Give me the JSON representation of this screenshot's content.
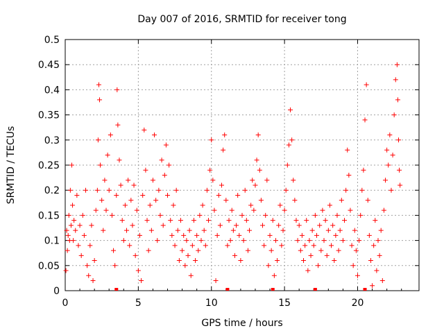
{
  "chart_data": {
    "type": "scatter",
    "title": "Day 007 of 2016, SRMTID for receiver tong",
    "xlabel": "GPS time / hours",
    "ylabel": "SRMTID / TECUs",
    "xlim": [
      0,
      24.2
    ],
    "ylim": [
      0,
      0.5
    ],
    "xticks": [
      0,
      5,
      10,
      15,
      20
    ],
    "xtick_labels": [
      "0",
      "5",
      "10",
      "15",
      "20"
    ],
    "yticks": [
      0,
      0.05,
      0.1,
      0.15,
      0.2,
      0.25,
      0.3,
      0.35,
      0.4,
      0.45,
      0.5
    ],
    "ytick_labels": [
      "0",
      "0.05",
      "0.1",
      "0.15",
      "0.2",
      "0.25",
      "0.3",
      "0.35",
      "0.4",
      "0.45",
      "0.5"
    ],
    "grid": true,
    "marker": "+",
    "color": "#ff0000",
    "series": [
      {
        "name": "SRMTID",
        "points": [
          [
            0.05,
            0.04
          ],
          [
            0.1,
            0.12
          ],
          [
            0.15,
            0.08
          ],
          [
            0.2,
            0.11
          ],
          [
            0.25,
            0.15
          ],
          [
            0.3,
            0.1
          ],
          [
            0.35,
            0.2
          ],
          [
            0.4,
            0.13
          ],
          [
            0.45,
            0.25
          ],
          [
            0.5,
            0.17
          ],
          [
            0.55,
            0.1
          ],
          [
            0.6,
            0.14
          ],
          [
            0.7,
            0.12
          ],
          [
            0.8,
            0.19
          ],
          [
            0.9,
            0.09
          ],
          [
            1.0,
            0.13
          ],
          [
            1.1,
            0.07
          ],
          [
            1.2,
            0.15
          ],
          [
            1.3,
            0.11
          ],
          [
            1.4,
            0.2
          ],
          [
            1.5,
            0.05
          ],
          [
            1.6,
            0.03
          ],
          [
            1.7,
            0.09
          ],
          [
            1.8,
            0.13
          ],
          [
            1.9,
            0.02
          ],
          [
            2.0,
            0.06
          ],
          [
            2.1,
            0.16
          ],
          [
            2.2,
            0.2
          ],
          [
            2.25,
            0.3
          ],
          [
            2.3,
            0.41
          ],
          [
            2.35,
            0.38
          ],
          [
            2.4,
            0.25
          ],
          [
            2.5,
            0.18
          ],
          [
            2.6,
            0.12
          ],
          [
            2.7,
            0.22
          ],
          [
            2.8,
            0.16
          ],
          [
            2.9,
            0.27
          ],
          [
            3.0,
            0.2
          ],
          [
            3.1,
            0.31
          ],
          [
            3.2,
            0.15
          ],
          [
            3.3,
            0.08
          ],
          [
            3.4,
            0.05
          ],
          [
            3.5,
            0.19
          ],
          [
            3.55,
            0.4
          ],
          [
            3.6,
            0.33
          ],
          [
            3.7,
            0.26
          ],
          [
            3.8,
            0.21
          ],
          [
            3.9,
            0.14
          ],
          [
            4.0,
            0.1
          ],
          [
            4.1,
            0.17
          ],
          [
            4.2,
            0.12
          ],
          [
            4.3,
            0.22
          ],
          [
            4.4,
            0.09
          ],
          [
            4.5,
            0.18
          ],
          [
            4.6,
            0.13
          ],
          [
            4.7,
            0.21
          ],
          [
            4.8,
            0.07
          ],
          [
            4.9,
            0.16
          ],
          [
            5.0,
            0.04
          ],
          [
            5.1,
            0.11
          ],
          [
            5.2,
            0.02
          ],
          [
            5.3,
            0.19
          ],
          [
            5.4,
            0.32
          ],
          [
            5.5,
            0.24
          ],
          [
            5.6,
            0.14
          ],
          [
            5.7,
            0.08
          ],
          [
            5.8,
            0.17
          ],
          [
            5.9,
            0.12
          ],
          [
            6.0,
            0.22
          ],
          [
            6.1,
            0.31
          ],
          [
            6.2,
            0.18
          ],
          [
            6.3,
            0.1
          ],
          [
            6.4,
            0.2
          ],
          [
            6.5,
            0.15
          ],
          [
            6.6,
            0.26
          ],
          [
            6.7,
            0.13
          ],
          [
            6.8,
            0.23
          ],
          [
            6.9,
            0.29
          ],
          [
            7.0,
            0.19
          ],
          [
            7.1,
            0.25
          ],
          [
            7.2,
            0.14
          ],
          [
            7.3,
            0.11
          ],
          [
            7.4,
            0.17
          ],
          [
            7.5,
            0.09
          ],
          [
            7.6,
            0.2
          ],
          [
            7.7,
            0.12
          ],
          [
            7.8,
            0.06
          ],
          [
            7.9,
            0.14
          ],
          [
            8.0,
            0.08
          ],
          [
            8.1,
            0.11
          ],
          [
            8.2,
            0.05
          ],
          [
            8.3,
            0.1
          ],
          [
            8.4,
            0.07
          ],
          [
            8.5,
            0.12
          ],
          [
            8.6,
            0.03
          ],
          [
            8.7,
            0.09
          ],
          [
            8.8,
            0.14
          ],
          [
            8.9,
            0.06
          ],
          [
            9.0,
            0.11
          ],
          [
            9.1,
            0.08
          ],
          [
            9.2,
            0.15
          ],
          [
            9.3,
            0.1
          ],
          [
            9.4,
            0.17
          ],
          [
            9.5,
            0.12
          ],
          [
            9.6,
            0.09
          ],
          [
            9.7,
            0.2
          ],
          [
            9.8,
            0.14
          ],
          [
            9.9,
            0.24
          ],
          [
            10.0,
            0.3
          ],
          [
            10.1,
            0.22
          ],
          [
            10.2,
            0.16
          ],
          [
            10.3,
            0.02
          ],
          [
            10.4,
            0.11
          ],
          [
            10.5,
            0.19
          ],
          [
            10.6,
            0.13
          ],
          [
            10.7,
            0.21
          ],
          [
            10.8,
            0.28
          ],
          [
            10.9,
            0.31
          ],
          [
            11.0,
            0.18
          ],
          [
            11.1,
            0.09
          ],
          [
            11.2,
            0.14
          ],
          [
            11.3,
            0.1
          ],
          [
            11.4,
            0.16
          ],
          [
            11.5,
            0.12
          ],
          [
            11.6,
            0.07
          ],
          [
            11.7,
            0.13
          ],
          [
            11.8,
            0.19
          ],
          [
            11.9,
            0.11
          ],
          [
            12.0,
            0.06
          ],
          [
            12.1,
            0.15
          ],
          [
            12.2,
            0.1
          ],
          [
            12.3,
            0.2
          ],
          [
            12.4,
            0.14
          ],
          [
            12.5,
            0.08
          ],
          [
            12.6,
            0.12
          ],
          [
            12.7,
            0.17
          ],
          [
            12.8,
            0.22
          ],
          [
            12.9,
            0.16
          ],
          [
            13.0,
            0.21
          ],
          [
            13.1,
            0.26
          ],
          [
            13.2,
            0.31
          ],
          [
            13.3,
            0.24
          ],
          [
            13.4,
            0.18
          ],
          [
            13.5,
            0.13
          ],
          [
            13.6,
            0.09
          ],
          [
            13.7,
            0.15
          ],
          [
            13.8,
            0.22
          ],
          [
            13.9,
            0.05
          ],
          [
            14.0,
            0.11
          ],
          [
            14.1,
            0.08
          ],
          [
            14.2,
            0.14
          ],
          [
            14.3,
            0.03
          ],
          [
            14.4,
            0.1
          ],
          [
            14.5,
            0.06
          ],
          [
            14.6,
            0.13
          ],
          [
            14.7,
            0.17
          ],
          [
            14.8,
            0.09
          ],
          [
            14.9,
            0.12
          ],
          [
            15.0,
            0.16
          ],
          [
            15.1,
            0.2
          ],
          [
            15.2,
            0.25
          ],
          [
            15.3,
            0.29
          ],
          [
            15.4,
            0.36
          ],
          [
            15.5,
            0.3
          ],
          [
            15.6,
            0.22
          ],
          [
            15.7,
            0.18
          ],
          [
            15.8,
            0.14
          ],
          [
            15.9,
            0.1
          ],
          [
            16.0,
            0.13
          ],
          [
            16.1,
            0.08
          ],
          [
            16.2,
            0.11
          ],
          [
            16.3,
            0.06
          ],
          [
            16.4,
            0.09
          ],
          [
            16.5,
            0.14
          ],
          [
            16.6,
            0.04
          ],
          [
            16.7,
            0.1
          ],
          [
            16.8,
            0.07
          ],
          [
            16.9,
            0.12
          ],
          [
            17.0,
            0.09
          ],
          [
            17.1,
            0.15
          ],
          [
            17.2,
            0.11
          ],
          [
            17.3,
            0.05
          ],
          [
            17.4,
            0.13
          ],
          [
            17.5,
            0.08
          ],
          [
            17.6,
            0.16
          ],
          [
            17.7,
            0.1
          ],
          [
            17.8,
            0.14
          ],
          [
            17.9,
            0.07
          ],
          [
            18.0,
            0.12
          ],
          [
            18.1,
            0.17
          ],
          [
            18.2,
            0.09
          ],
          [
            18.3,
            0.13
          ],
          [
            18.4,
            0.06
          ],
          [
            18.5,
            0.11
          ],
          [
            18.6,
            0.15
          ],
          [
            18.7,
            0.08
          ],
          [
            18.8,
            0.12
          ],
          [
            18.9,
            0.18
          ],
          [
            19.0,
            0.1
          ],
          [
            19.1,
            0.14
          ],
          [
            19.2,
            0.2
          ],
          [
            19.3,
            0.28
          ],
          [
            19.4,
            0.23
          ],
          [
            19.5,
            0.16
          ],
          [
            19.6,
            0.09
          ],
          [
            19.7,
            0.05
          ],
          [
            19.8,
            0.12
          ],
          [
            19.9,
            0.08
          ],
          [
            20.0,
            0.03
          ],
          [
            20.1,
            0.1
          ],
          [
            20.2,
            0.15
          ],
          [
            20.3,
            0.2
          ],
          [
            20.4,
            0.24
          ],
          [
            20.5,
            0.34
          ],
          [
            20.6,
            0.41
          ],
          [
            20.7,
            0.18
          ],
          [
            20.8,
            0.11
          ],
          [
            20.9,
            0.06
          ],
          [
            21.0,
            0.01
          ],
          [
            21.1,
            0.09
          ],
          [
            21.2,
            0.14
          ],
          [
            21.3,
            0.04
          ],
          [
            21.4,
            0.1
          ],
          [
            21.5,
            0.07
          ],
          [
            21.6,
            0.12
          ],
          [
            21.7,
            0.02
          ],
          [
            21.8,
            0.16
          ],
          [
            21.9,
            0.22
          ],
          [
            22.0,
            0.28
          ],
          [
            22.1,
            0.25
          ],
          [
            22.2,
            0.31
          ],
          [
            22.3,
            0.2
          ],
          [
            22.4,
            0.27
          ],
          [
            22.5,
            0.35
          ],
          [
            22.6,
            0.42
          ],
          [
            22.7,
            0.45
          ],
          [
            22.75,
            0.38
          ],
          [
            22.8,
            0.3
          ],
          [
            22.85,
            0.24
          ],
          [
            22.9,
            0.21
          ]
        ]
      }
    ],
    "baseline_markers_x": [
      3.5,
      11.1,
      14.2,
      17.1,
      20.5
    ]
  }
}
